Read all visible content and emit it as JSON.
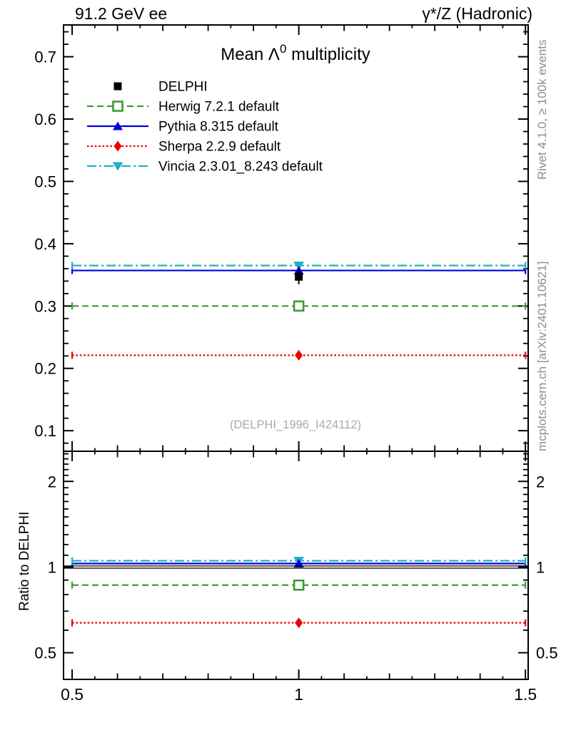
{
  "header": {
    "left": "91.2 GeV ee",
    "right": "γ*/Z (Hadronic)"
  },
  "side_text": {
    "top": "Rivet 4.1.0, ≥ 100k events",
    "bottom": "mcplots.cern.ch [arXiv:2401.10621]"
  },
  "watermark": "(DELPHI_1996_I424112)",
  "chart_data": {
    "type": "line",
    "title": "Mean Λ⁰ multiplicity",
    "title_parts": {
      "main": "Mean Λ",
      "sup": "0",
      "rest": " multiplicity"
    },
    "legend_position": "top-left",
    "grid": false,
    "x": {
      "min": 0.481,
      "max": 1.506,
      "majors": [
        0.5,
        1.0,
        1.5
      ],
      "labels": [
        "0.5",
        "1",
        "1.5"
      ],
      "minor_step": 0.05,
      "data_x": 1.0,
      "span": [
        0.5,
        1.5
      ]
    },
    "main": {
      "scale": "linear",
      "ymin": 0.067,
      "ymax": 0.751,
      "majors": [
        0.1,
        0.2,
        0.3,
        0.4,
        0.5,
        0.6,
        0.7
      ],
      "labels": [
        "0.1",
        "0.2",
        "0.3",
        "0.4",
        "0.5",
        "0.6",
        "0.7"
      ],
      "minor_step": 0.02
    },
    "ratio": {
      "scale": "log",
      "ylabel": "Ratio to DELPHI",
      "ymin": 0.403,
      "ymax": 2.552,
      "majors": [
        0.5,
        1,
        2
      ],
      "labels": [
        "0.5",
        "1",
        "2"
      ],
      "minors": [
        0.6,
        0.7,
        0.8,
        0.9,
        1.1,
        1.2,
        1.3,
        1.4,
        1.5,
        1.6,
        1.7,
        1.8,
        1.9,
        2.1,
        2.2,
        2.3,
        2.4,
        2.5
      ]
    },
    "series": [
      {
        "name": "DELPHI",
        "role": "reference-data",
        "color": "#000000",
        "marker": "square_filled",
        "line": "none",
        "value": 0.347,
        "value_err": 0.003,
        "ratio": 1.0,
        "ratio_band": [
          0.991,
          1.009
        ]
      },
      {
        "name": "Herwig 7.2.1 default",
        "role": "mc",
        "color": "#3E9B33",
        "marker": "square_open",
        "line": "dashed",
        "value": 0.3,
        "ratio": 0.864
      },
      {
        "name": "Pythia 8.315 default",
        "role": "mc",
        "color": "#0000E0",
        "marker": "triangle_up",
        "line": "solid",
        "value": 0.357,
        "ratio": 1.029
      },
      {
        "name": "Sherpa 2.2.9 default",
        "role": "mc",
        "color": "#EE0000",
        "marker": "diamond_filled",
        "line": "dotted",
        "value": 0.221,
        "ratio": 0.637
      },
      {
        "name": "Vincia 2.3.01_8.243 default",
        "role": "mc",
        "color": "#22AEC8",
        "marker": "triangle_down",
        "line": "dashdot",
        "value": 0.365,
        "ratio": 1.052
      }
    ]
  }
}
